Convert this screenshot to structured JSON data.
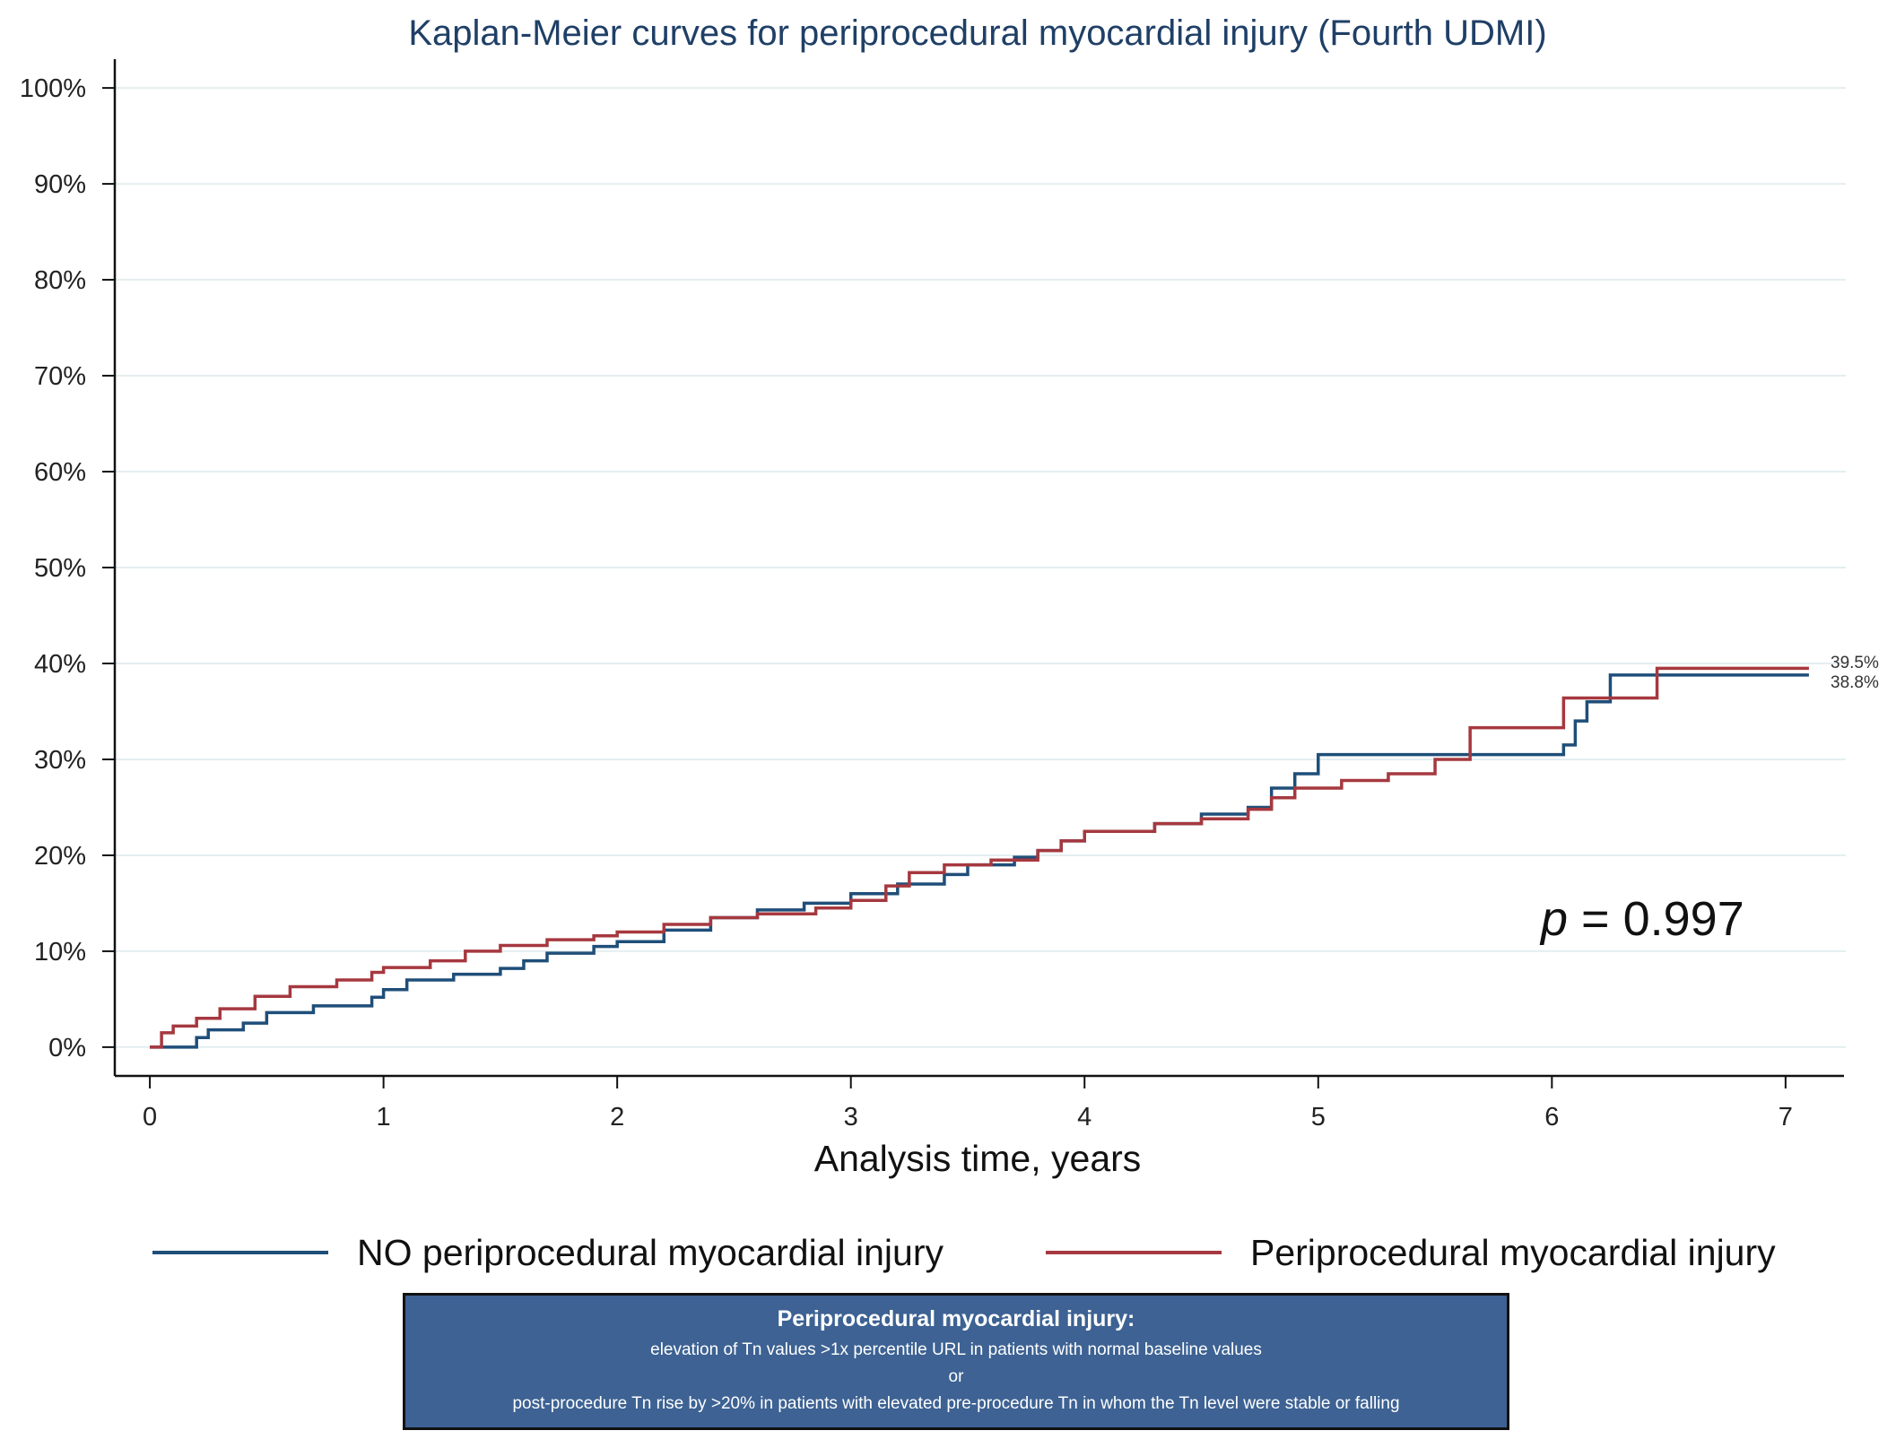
{
  "chart_data": {
    "type": "line",
    "subtype": "kaplan-meier-step",
    "title": "Kaplan-Meier curves for periprocedural myocardial injury (Fourth UDMI)",
    "xlabel": "Analysis time, years",
    "ylabel": "",
    "xlim": [
      -0.15,
      7.25
    ],
    "ylim": [
      -3,
      103
    ],
    "xticks": [
      0,
      1,
      2,
      3,
      4,
      5,
      6,
      7
    ],
    "xtick_labels": [
      "0",
      "1",
      "2",
      "3",
      "4",
      "5",
      "6",
      "7"
    ],
    "yticks": [
      0,
      10,
      20,
      30,
      40,
      50,
      60,
      70,
      80,
      90,
      100
    ],
    "ytick_labels": [
      "0%",
      "10%",
      "20%",
      "30%",
      "40%",
      "50%",
      "60%",
      "70%",
      "80%",
      "90%",
      "100%"
    ],
    "grid": true,
    "colors": {
      "no_injury": "#1f4e79",
      "injury": "#a6383f",
      "grid": "#e4eef0",
      "title": "#1f3f66"
    },
    "series": [
      {
        "name": "NO periprocedural myocardial injury",
        "color": "#1f4e79",
        "x": [
          0,
          0.2,
          0.25,
          0.4,
          0.5,
          0.7,
          0.95,
          1.0,
          1.1,
          1.3,
          1.5,
          1.6,
          1.7,
          1.9,
          2.0,
          2.2,
          2.4,
          2.6,
          2.8,
          3.0,
          3.2,
          3.4,
          3.5,
          3.7,
          3.8,
          3.9,
          4.0,
          4.3,
          4.5,
          4.7,
          4.8,
          4.9,
          5.0,
          5.2,
          5.5,
          5.8,
          6.0,
          6.05,
          6.1,
          6.15,
          6.25,
          6.5,
          7.1
        ],
        "y": [
          0,
          1.0,
          1.8,
          2.5,
          3.6,
          4.3,
          5.2,
          6.0,
          7.0,
          7.6,
          8.2,
          9.0,
          9.8,
          10.5,
          11.0,
          12.2,
          13.5,
          14.3,
          15.0,
          16.0,
          17.0,
          18.0,
          19.0,
          19.8,
          20.5,
          21.5,
          22.5,
          23.3,
          24.3,
          25.0,
          27.0,
          28.5,
          30.5,
          30.5,
          30.5,
          30.5,
          30.5,
          31.5,
          34.0,
          36.0,
          38.8,
          38.8,
          38.8
        ]
      },
      {
        "name": "Periprocedural myocardial injury",
        "color": "#a6383f",
        "x": [
          0,
          0.05,
          0.1,
          0.2,
          0.3,
          0.45,
          0.6,
          0.8,
          0.95,
          1.0,
          1.2,
          1.35,
          1.5,
          1.7,
          1.9,
          2.0,
          2.2,
          2.4,
          2.6,
          2.85,
          3.0,
          3.15,
          3.25,
          3.4,
          3.6,
          3.8,
          3.9,
          4.0,
          4.3,
          4.5,
          4.7,
          4.8,
          4.9,
          5.1,
          5.3,
          5.5,
          5.65,
          5.9,
          6.0,
          6.05,
          6.45,
          7.1
        ],
        "y": [
          0,
          1.5,
          2.2,
          3.0,
          4.0,
          5.3,
          6.3,
          7.0,
          7.8,
          8.3,
          9.0,
          10.0,
          10.6,
          11.2,
          11.6,
          12.0,
          12.8,
          13.5,
          13.9,
          14.5,
          15.3,
          16.8,
          18.2,
          19.0,
          19.5,
          20.5,
          21.5,
          22.5,
          23.3,
          23.8,
          24.8,
          26.0,
          27.0,
          27.8,
          28.5,
          30.0,
          33.3,
          33.3,
          33.3,
          36.4,
          39.5,
          39.5
        ]
      }
    ],
    "end_labels": [
      "39.5%",
      "38.8%"
    ],
    "annotation": {
      "p_symbol": "p",
      "p_text": " = 0.997"
    },
    "legend": {
      "position": "bottom",
      "entries": [
        "NO periprocedural myocardial injury",
        "Periprocedural myocardial injury"
      ]
    }
  },
  "definition_box": {
    "heading": "Periprocedural myocardial injury:",
    "line1": "elevation of Tn values >1x percentile URL in patients with normal baseline values",
    "line2": "or",
    "line3": "post-procedure Tn rise by >20%  in patients with elevated pre-procedure Tn in whom the Tn level were stable or falling"
  }
}
